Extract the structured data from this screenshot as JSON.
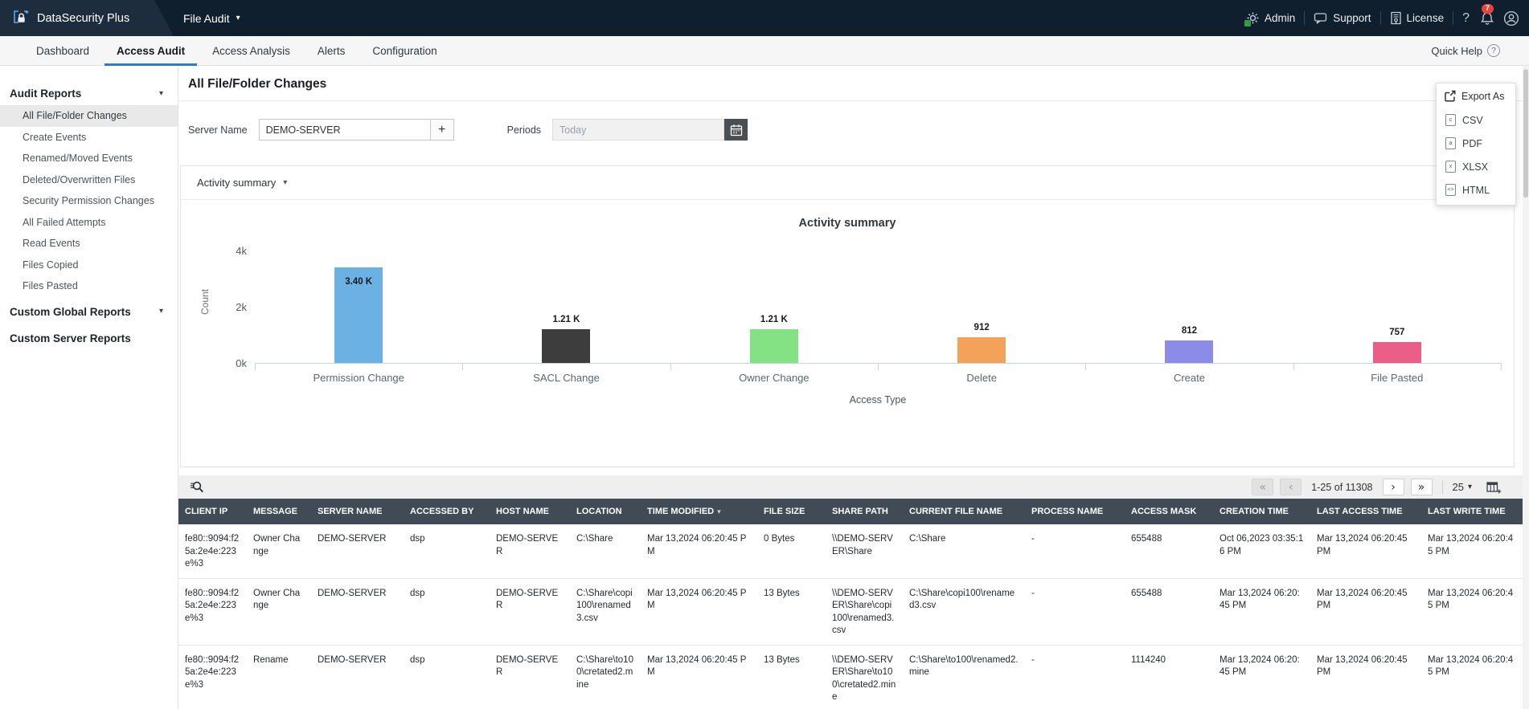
{
  "colors": {
    "accent": "#2e7cc4",
    "topbar_bg": "#101f2d",
    "brand_bg": "#1d2d3d",
    "table_header_bg": "#414b55",
    "axis": "#c3d6e0"
  },
  "topbar": {
    "brand": "DataSecurity Plus",
    "product": "File Audit",
    "links": {
      "admin": "Admin",
      "support": "Support",
      "license": "License"
    },
    "notification_count": "7"
  },
  "nav": {
    "tabs": [
      {
        "label": "Dashboard",
        "active": false
      },
      {
        "label": "Access Audit",
        "active": true
      },
      {
        "label": "Access Analysis",
        "active": false
      },
      {
        "label": "Alerts",
        "active": false
      },
      {
        "label": "Configuration",
        "active": false
      }
    ],
    "quick_help": "Quick Help"
  },
  "sidebar": {
    "sections": [
      {
        "label": "Audit Reports",
        "caret": true,
        "items": [
          {
            "label": "All File/Folder Changes",
            "selected": true
          },
          {
            "label": "Create Events",
            "selected": false
          },
          {
            "label": "Renamed/Moved Events",
            "selected": false
          },
          {
            "label": "Deleted/Overwritten Files",
            "selected": false
          },
          {
            "label": "Security Permission Changes",
            "selected": false
          },
          {
            "label": "All Failed Attempts",
            "selected": false
          },
          {
            "label": "Read Events",
            "selected": false
          },
          {
            "label": "Files Copied",
            "selected": false
          },
          {
            "label": "Files Pasted",
            "selected": false
          }
        ]
      },
      {
        "label": "Custom Global Reports",
        "caret": true,
        "items": []
      },
      {
        "label": "Custom Server Reports",
        "caret": false,
        "items": []
      }
    ]
  },
  "main": {
    "title": "All File/Folder Changes",
    "filters": {
      "server_name_label": "Server Name",
      "server_name_value": "DEMO-SERVER",
      "add_button_label": "+",
      "periods_label": "Periods",
      "periods_value": "Today"
    }
  },
  "export_menu": {
    "title": "Export As",
    "options": [
      "CSV",
      "PDF",
      "XLSX",
      "HTML"
    ]
  },
  "chart_data": {
    "type": "bar",
    "panel_label": "Activity summary",
    "title": "Activity summary",
    "categories": [
      "Permission Change",
      "SACL Change",
      "Owner Change",
      "Delete",
      "Create",
      "File Pasted"
    ],
    "values": [
      3400,
      1210,
      1210,
      912,
      812,
      757
    ],
    "value_labels": [
      "3.40 K",
      "1.21 K",
      "1.21 K",
      "912",
      "812",
      "757"
    ],
    "bar_colors": [
      "#6cb1e4",
      "#3d3d3d",
      "#84e184",
      "#f4a259",
      "#8b8be8",
      "#eb5e87"
    ],
    "xlabel": "Access Type",
    "ylabel": "Count",
    "yticks": [
      "0k",
      "2k",
      "4k"
    ],
    "ylim": [
      0,
      4000
    ],
    "grid": false,
    "legend": false
  },
  "table": {
    "pagination": {
      "first": "«",
      "prev": "‹",
      "range": "1-25 of 11308",
      "next": "›",
      "last": "»",
      "page_size": "25"
    },
    "columns": [
      "CLIENT IP",
      "MESSAGE",
      "SERVER NAME",
      "ACCESSED BY",
      "HOST NAME",
      "LOCATION",
      "TIME MODIFIED",
      "FILE SIZE",
      "SHARE PATH",
      "CURRENT FILE NAME",
      "PROCESS NAME",
      "ACCESS MASK",
      "CREATION TIME",
      "LAST ACCESS TIME",
      "LAST WRITE TIME"
    ],
    "sort_column": "TIME MODIFIED",
    "rows": [
      [
        "fe80::9094:f25a:2e4e:223e%3",
        "Owner Change",
        "DEMO-SERVER",
        "dsp",
        "DEMO-SERVER",
        "C:\\Share",
        "Mar 13,2024 06:20:45 PM",
        "0 Bytes",
        "\\\\DEMO-SERVER\\Share",
        "C:\\Share",
        "-",
        "655488",
        "Oct 06,2023 03:35:16 PM",
        "Mar 13,2024 06:20:45 PM",
        "Mar 13,2024 06:20:45 PM"
      ],
      [
        "fe80::9094:f25a:2e4e:223e%3",
        "Owner Change",
        "DEMO-SERVER",
        "dsp",
        "DEMO-SERVER",
        "C:\\Share\\copi100\\renamed3.csv",
        "Mar 13,2024 06:20:45 PM",
        "13 Bytes",
        "\\\\DEMO-SERVER\\Share\\copi100\\renamed3.csv",
        "C:\\Share\\copi100\\renamed3.csv",
        "-",
        "655488",
        "Mar 13,2024 06:20:45 PM",
        "Mar 13,2024 06:20:45 PM",
        "Mar 13,2024 06:20:45 PM"
      ],
      [
        "fe80::9094:f25a:2e4e:223e%3",
        "Rename",
        "DEMO-SERVER",
        "dsp",
        "DEMO-SERVER",
        "C:\\Share\\to100\\cretated2.mine",
        "Mar 13,2024 06:20:45 PM",
        "13 Bytes",
        "\\\\DEMO-SERVER\\Share\\to100\\cretated2.mine",
        "C:\\Share\\to100\\renamed2.mine",
        "-",
        "1114240",
        "Mar 13,2024 06:20:45 PM",
        "Mar 13,2024 06:20:45 PM",
        "Mar 13,2024 06:20:45 PM"
      ]
    ]
  }
}
